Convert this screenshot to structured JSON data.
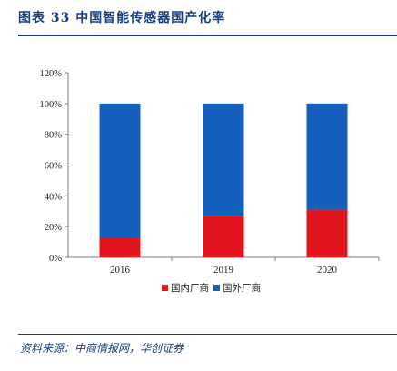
{
  "header": {
    "figure_title": "图表 33  中国智能传感器国产化率"
  },
  "source_note": "资料来源：中商情报网，华创证券",
  "colors": {
    "domestic": "#e0151d",
    "foreign": "#1560bd",
    "header_blue": "#1a3e86"
  },
  "chart_data": {
    "type": "bar",
    "stacked": true,
    "categories": [
      "2016",
      "2019",
      "2020"
    ],
    "series": [
      {
        "name": "国内厂商",
        "values": [
          13,
          27,
          31
        ],
        "color": "#e0151d"
      },
      {
        "name": "国外厂商",
        "values": [
          87,
          73,
          69
        ],
        "color": "#1560bd"
      }
    ],
    "ylim": [
      0,
      120
    ],
    "yticks": [
      "0%",
      "20%",
      "40%",
      "60%",
      "80%",
      "100%",
      "120%"
    ],
    "legend_position": "bottom",
    "grid": false
  }
}
